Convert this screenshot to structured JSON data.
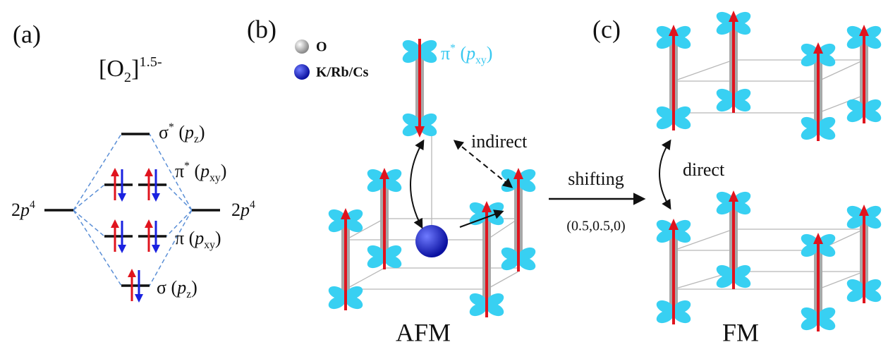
{
  "panel_a": {
    "label": "(a)",
    "formula": [
      "[O",
      "2",
      "]",
      "1.5-"
    ],
    "levels": {
      "sigma_star": [
        "σ",
        "*",
        " (",
        "p",
        "z",
        ")"
      ],
      "pi_star": [
        "π",
        "*",
        " (",
        "p",
        "xy",
        ")"
      ],
      "pi": [
        "π (",
        "p",
        "xy",
        ")"
      ],
      "sigma": [
        "σ (",
        "p",
        "z",
        ")"
      ]
    },
    "atomic_left": [
      "2",
      "p",
      "4"
    ],
    "atomic_right": [
      "2",
      "p",
      "4"
    ]
  },
  "panel_b": {
    "label": "(b)",
    "legend": [
      "O",
      "K/Rb/Cs"
    ],
    "orbital": [
      "π",
      "*",
      " (",
      "p",
      "xy",
      ")"
    ],
    "indirect": "indirect",
    "caption": "AFM"
  },
  "shift": {
    "label": "shifting",
    "vector": "(0.5,0.5,0)"
  },
  "panel_c": {
    "label": "(c)",
    "direct": "direct",
    "caption": "FM"
  }
}
